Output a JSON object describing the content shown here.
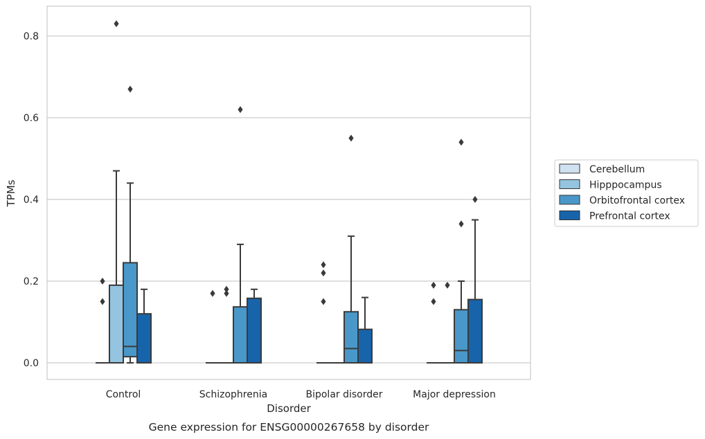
{
  "caption": "Gene expression for ENSG00000267658 by disorder",
  "chart_data": {
    "type": "box",
    "xlabel": "Disorder",
    "ylabel": "TPMs",
    "ylim": [
      -0.04,
      0.875
    ],
    "yticks": [
      0.0,
      0.2,
      0.4,
      0.6,
      0.8
    ],
    "ytick_labels": [
      "0.0",
      "0.2",
      "0.4",
      "0.6",
      "0.8"
    ],
    "grid": "horizontal",
    "legend_position": "right",
    "categories": [
      "Control",
      "Schizophrenia",
      "Bipolar disorder",
      "Major depression"
    ],
    "series": [
      {
        "name": "Cerebellum",
        "color": "#d0e1f2",
        "boxes": [
          {
            "min": 0,
            "q1": 0,
            "median": 0,
            "q3": 0,
            "max": 0,
            "outliers": [
              0.15,
              0.2
            ]
          },
          {
            "min": 0,
            "q1": 0,
            "median": 0,
            "q3": 0,
            "max": 0,
            "outliers": [
              0.17
            ]
          },
          {
            "min": 0,
            "q1": 0,
            "median": 0,
            "q3": 0,
            "max": 0,
            "outliers": [
              0.15,
              0.22,
              0.24
            ]
          },
          {
            "min": 0,
            "q1": 0,
            "median": 0,
            "q3": 0,
            "max": 0,
            "outliers": [
              0.15,
              0.19
            ]
          }
        ]
      },
      {
        "name": "Hipppocampus",
        "color": "#94c4df",
        "boxes": [
          {
            "min": 0,
            "q1": 0,
            "median": 0,
            "q3": 0.19,
            "max": 0.47,
            "outliers": [
              0.83
            ]
          },
          {
            "min": 0,
            "q1": 0,
            "median": 0,
            "q3": 0,
            "max": 0,
            "outliers": [
              0.17,
              0.18
            ]
          },
          {
            "min": 0,
            "q1": 0,
            "median": 0,
            "q3": 0,
            "max": 0,
            "outliers": []
          },
          {
            "min": 0,
            "q1": 0,
            "median": 0,
            "q3": 0,
            "max": 0,
            "outliers": [
              0.19
            ]
          }
        ]
      },
      {
        "name": "Orbitofrontal cortex",
        "color": "#4a98c9",
        "boxes": [
          {
            "min": 0,
            "q1": 0.015,
            "median": 0.04,
            "q3": 0.245,
            "max": 0.44,
            "outliers": [
              0.67
            ]
          },
          {
            "min": 0,
            "q1": 0,
            "median": 0,
            "q3": 0.137,
            "max": 0.29,
            "outliers": [
              0.62
            ]
          },
          {
            "min": 0,
            "q1": 0,
            "median": 0.035,
            "q3": 0.125,
            "max": 0.31,
            "outliers": [
              0.55
            ]
          },
          {
            "min": 0,
            "q1": 0,
            "median": 0.03,
            "q3": 0.13,
            "max": 0.2,
            "outliers": [
              0.34,
              0.54
            ]
          }
        ]
      },
      {
        "name": "Prefrontal cortex",
        "color": "#1764ab",
        "boxes": [
          {
            "min": 0,
            "q1": 0,
            "median": 0,
            "q3": 0.12,
            "max": 0.18,
            "outliers": []
          },
          {
            "min": 0,
            "q1": 0,
            "median": 0,
            "q3": 0.158,
            "max": 0.18,
            "outliers": []
          },
          {
            "min": 0,
            "q1": 0,
            "median": 0,
            "q3": 0.082,
            "max": 0.16,
            "outliers": []
          },
          {
            "min": 0,
            "q1": 0,
            "median": 0,
            "q3": 0.155,
            "max": 0.35,
            "outliers": [
              0.4
            ]
          }
        ]
      }
    ]
  }
}
